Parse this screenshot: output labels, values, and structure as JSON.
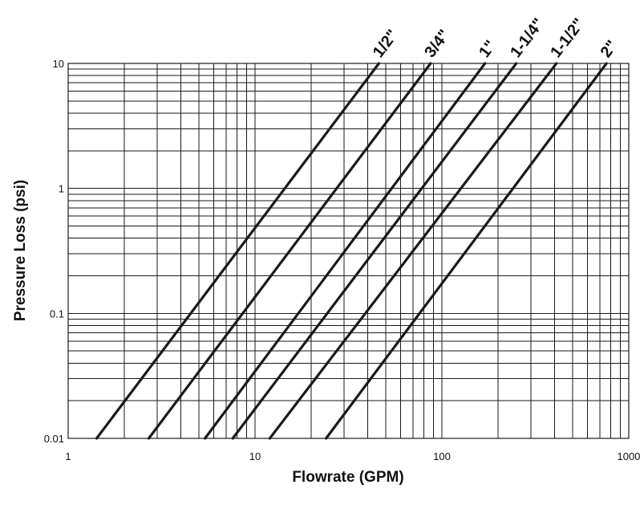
{
  "chart_data": {
    "type": "line",
    "x_scale": "log",
    "y_scale": "log",
    "xlabel": "Flowrate (GPM)",
    "ylabel": "Pressure Loss (psi)",
    "xlim": [
      1,
      1000
    ],
    "ylim": [
      0.01,
      10
    ],
    "x_ticks": [
      "1",
      "10",
      "100",
      "1000"
    ],
    "y_ticks": [
      "0.01",
      "0.1",
      "1",
      "10"
    ],
    "grid": true,
    "legend": "none",
    "series": [
      {
        "name": "1/2\"",
        "x": [
          1.42,
          46.0
        ],
        "y": [
          0.01,
          10
        ]
      },
      {
        "name": "3/4\"",
        "x": [
          2.7,
          87.0
        ],
        "y": [
          0.01,
          10
        ]
      },
      {
        "name": "1\"",
        "x": [
          5.4,
          170.0
        ],
        "y": [
          0.01,
          10
        ]
      },
      {
        "name": "1-1/4\"",
        "x": [
          7.6,
          250.0
        ],
        "y": [
          0.01,
          10
        ]
      },
      {
        "name": "1-1/2\"",
        "x": [
          12.0,
          410.0
        ],
        "y": [
          0.01,
          10
        ]
      },
      {
        "name": "2\"",
        "x": [
          24.0,
          760.0
        ],
        "y": [
          0.01,
          10
        ]
      }
    ]
  }
}
